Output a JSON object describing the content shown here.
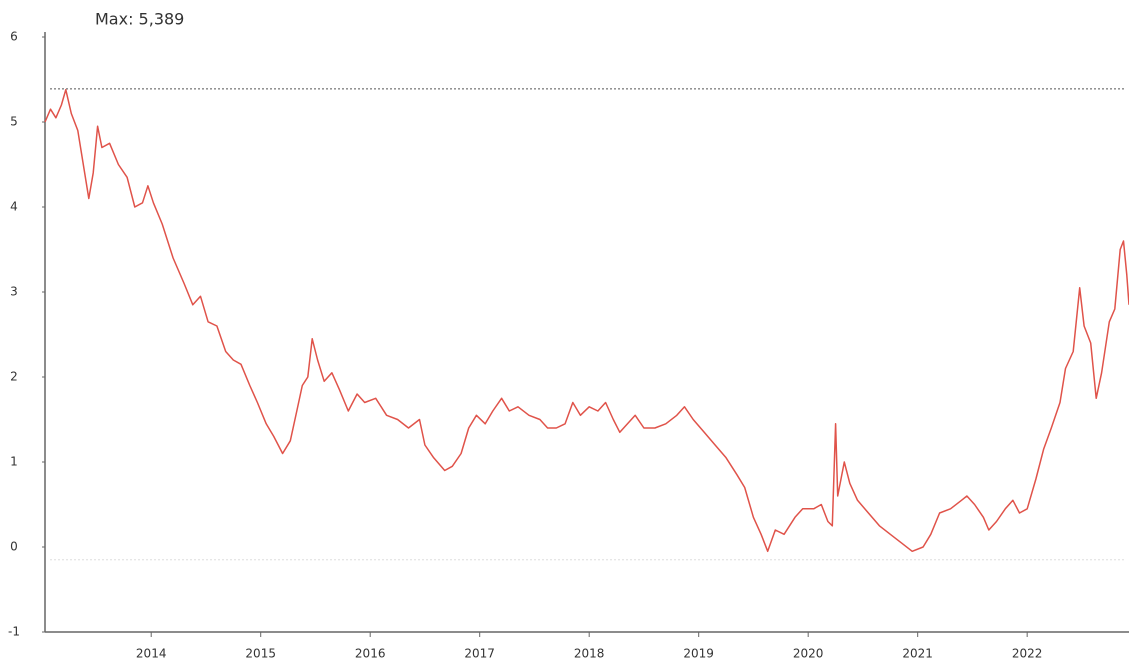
{
  "chart_data": {
    "type": "line",
    "max_line": {
      "value": 5.389,
      "label": "Max: 5,389"
    },
    "min_line": -0.15,
    "x": [
      2013.03,
      2013.08,
      2013.13,
      2013.18,
      2013.22,
      2013.27,
      2013.33,
      2013.38,
      2013.43,
      2013.47,
      2013.51,
      2013.55,
      2013.62,
      2013.7,
      2013.78,
      2013.85,
      2013.92,
      2013.97,
      2014.02,
      2014.1,
      2014.2,
      2014.3,
      2014.38,
      2014.45,
      2014.52,
      2014.6,
      2014.68,
      2014.75,
      2014.82,
      2014.9,
      2014.97,
      2015.05,
      2015.12,
      2015.2,
      2015.27,
      2015.33,
      2015.38,
      2015.43,
      2015.47,
      2015.52,
      2015.58,
      2015.65,
      2015.72,
      2015.8,
      2015.88,
      2015.95,
      2016.05,
      2016.15,
      2016.25,
      2016.35,
      2016.45,
      2016.5,
      2016.58,
      2016.68,
      2016.75,
      2016.83,
      2016.9,
      2016.97,
      2017.05,
      2017.12,
      2017.2,
      2017.27,
      2017.35,
      2017.45,
      2017.55,
      2017.62,
      2017.7,
      2017.78,
      2017.85,
      2017.92,
      2018.0,
      2018.08,
      2018.15,
      2018.22,
      2018.28,
      2018.35,
      2018.42,
      2018.5,
      2018.6,
      2018.7,
      2018.8,
      2018.87,
      2018.95,
      2019.05,
      2019.15,
      2019.25,
      2019.35,
      2019.42,
      2019.5,
      2019.57,
      2019.63,
      2019.7,
      2019.78,
      2019.88,
      2019.95,
      2020.05,
      2020.12,
      2020.18,
      2020.22,
      2020.25,
      2020.27,
      2020.3,
      2020.33,
      2020.38,
      2020.45,
      2020.55,
      2020.65,
      2020.75,
      2020.85,
      2020.95,
      2021.05,
      2021.12,
      2021.2,
      2021.3,
      2021.4,
      2021.45,
      2021.52,
      2021.6,
      2021.65,
      2021.72,
      2021.8,
      2021.87,
      2021.93,
      2022.0,
      2022.08,
      2022.15,
      2022.22,
      2022.3,
      2022.35,
      2022.42,
      2022.48,
      2022.52,
      2022.58,
      2022.63,
      2022.68,
      2022.75,
      2022.8,
      2022.85,
      2022.88,
      2022.91,
      2022.93
    ],
    "series": [
      {
        "color": "#e0534a",
        "values": [
          5.0,
          5.15,
          5.05,
          5.2,
          5.38,
          5.1,
          4.9,
          4.5,
          4.1,
          4.4,
          4.95,
          4.7,
          4.75,
          4.5,
          4.35,
          4.0,
          4.05,
          4.25,
          4.05,
          3.8,
          3.4,
          3.1,
          2.85,
          2.95,
          2.65,
          2.6,
          2.3,
          2.2,
          2.15,
          1.9,
          1.7,
          1.45,
          1.3,
          1.1,
          1.25,
          1.6,
          1.9,
          2.0,
          2.45,
          2.2,
          1.95,
          2.05,
          1.85,
          1.6,
          1.8,
          1.7,
          1.75,
          1.55,
          1.5,
          1.4,
          1.5,
          1.2,
          1.05,
          0.9,
          0.95,
          1.1,
          1.4,
          1.55,
          1.45,
          1.6,
          1.75,
          1.6,
          1.65,
          1.55,
          1.5,
          1.4,
          1.4,
          1.45,
          1.7,
          1.55,
          1.65,
          1.6,
          1.7,
          1.5,
          1.35,
          1.45,
          1.55,
          1.4,
          1.4,
          1.45,
          1.55,
          1.65,
          1.5,
          1.35,
          1.2,
          1.05,
          0.85,
          0.7,
          0.35,
          0.15,
          -0.05,
          0.2,
          0.15,
          0.35,
          0.45,
          0.45,
          0.5,
          0.3,
          0.25,
          1.45,
          0.6,
          0.8,
          1.0,
          0.75,
          0.55,
          0.4,
          0.25,
          0.15,
          0.05,
          -0.05,
          0.0,
          0.15,
          0.4,
          0.45,
          0.55,
          0.6,
          0.5,
          0.35,
          0.2,
          0.3,
          0.45,
          0.55,
          0.4,
          0.45,
          0.8,
          1.15,
          1.4,
          1.7,
          2.1,
          2.3,
          3.05,
          2.6,
          2.4,
          1.75,
          2.05,
          2.65,
          2.8,
          3.5,
          3.6,
          3.2,
          2.85
        ]
      }
    ],
    "xlim": [
      2013.03,
      2022.93
    ],
    "xticks": [
      2014,
      2015,
      2016,
      2017,
      2018,
      2019,
      2020,
      2021,
      2022
    ],
    "ylim": [
      -1,
      6
    ],
    "yticks": [
      -1,
      0,
      1,
      2,
      3,
      4,
      5,
      6
    ],
    "grid": false
  }
}
